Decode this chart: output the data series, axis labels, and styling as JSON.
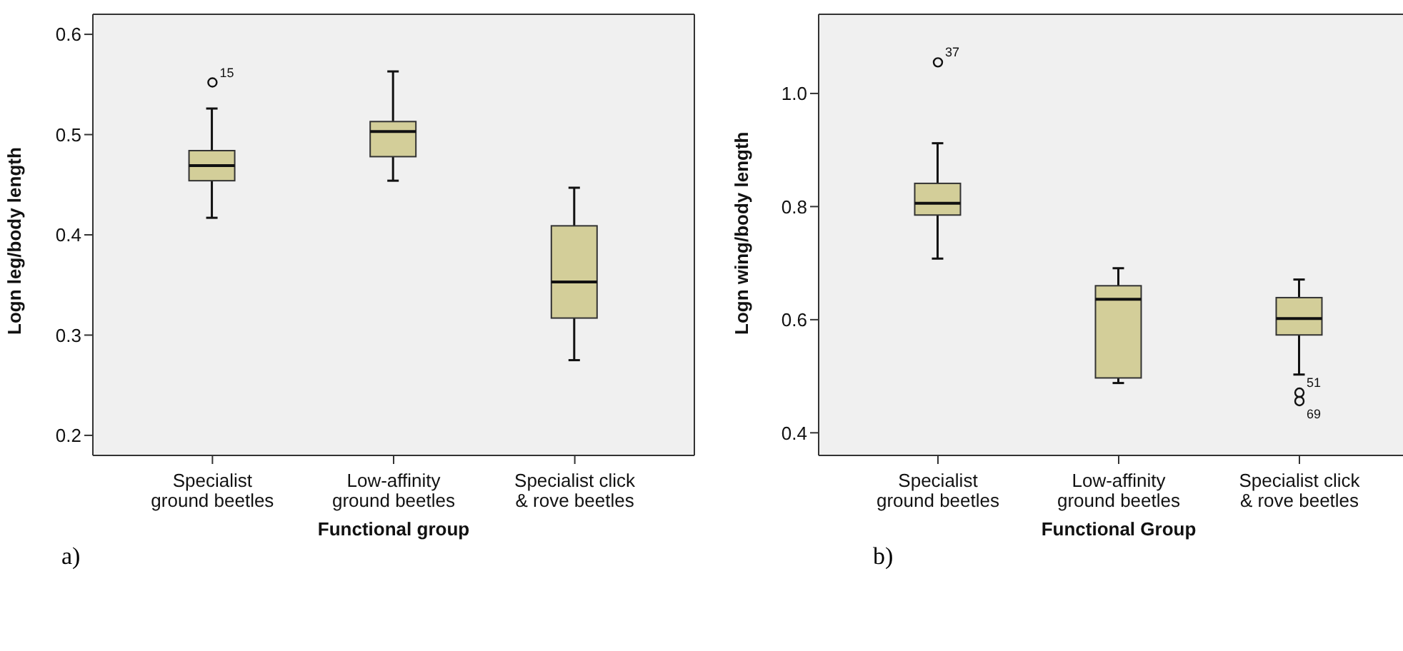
{
  "chart_data": [
    {
      "type": "box",
      "xlabel": "Functional group",
      "ylabel": "Logn leg/body length",
      "categories": [
        "Specialist\nground beetles",
        "Low-affinity\nground beetles",
        "Specialist click\n& rove beetles"
      ],
      "color": "#d3ce99",
      "ylim": [
        0.18,
        0.62
      ],
      "yticks": [
        0.2,
        0.3,
        0.4,
        0.5,
        0.6
      ],
      "boxes": [
        {
          "low": 0.417,
          "q1": 0.454,
          "median": 0.469,
          "q3": 0.484,
          "high": 0.526,
          "outliers": [
            0.552
          ]
        },
        {
          "low": 0.454,
          "q1": 0.478,
          "median": 0.503,
          "q3": 0.513,
          "high": 0.563
        },
        {
          "low": 0.275,
          "q1": 0.317,
          "median": 0.353,
          "q3": 0.409,
          "high": 0.447
        }
      ],
      "annotations": [
        "15",
        "a)"
      ]
    },
    {
      "type": "box",
      "xlabel": "Functional Group",
      "ylabel": "Logn wing/body length",
      "categories": [
        "Specialist\nground beetles",
        "Low-affinity\nground beetles",
        "Specialist click\n& rove beetles"
      ],
      "color": "#d3ce99",
      "ylim": [
        0.36,
        1.14
      ],
      "yticks": [
        0.4,
        0.6,
        0.8,
        {
          "value": 1,
          "label": "1.0"
        }
      ],
      "boxes": [
        {
          "low": 0.708,
          "q1": 0.785,
          "median": 0.806,
          "q3": 0.841,
          "high": 0.912,
          "outliers": [
            1.055
          ]
        },
        {
          "low": 0.488,
          "q1": 0.497,
          "median": 0.636,
          "q3": 0.66,
          "high": 0.691
        },
        {
          "low": 0.503,
          "q1": 0.573,
          "median": 0.602,
          "q3": 0.639,
          "high": 0.671,
          "outliers": [
            0.471,
            0.456
          ]
        }
      ],
      "annotations": [
        "37",
        "51",
        "69",
        "b)"
      ]
    }
  ]
}
